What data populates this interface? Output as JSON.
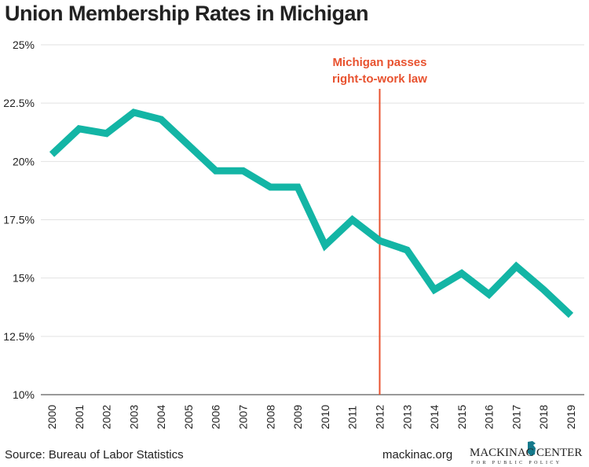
{
  "chart_data": {
    "type": "line",
    "title": "Union Membership Rates in Michigan",
    "x": [
      "2000",
      "2001",
      "2002",
      "2003",
      "2004",
      "2005",
      "2006",
      "2007",
      "2008",
      "2009",
      "2010",
      "2011",
      "2012",
      "2013",
      "2014",
      "2015",
      "2016",
      "2017",
      "2018",
      "2019"
    ],
    "series": [
      {
        "values": [
          20.3,
          21.4,
          21.2,
          22.1,
          21.8,
          20.7,
          19.6,
          19.6,
          18.9,
          18.9,
          16.4,
          17.5,
          16.6,
          16.2,
          14.5,
          15.2,
          14.3,
          15.5,
          14.5,
          13.4
        ]
      }
    ],
    "ylim": [
      10,
      25
    ],
    "yticks": [
      "10%",
      "12.5%",
      "15%",
      "17.5%",
      "20%",
      "22.5%",
      "25%"
    ],
    "ytick_values": [
      10,
      12.5,
      15,
      17.5,
      20,
      22.5,
      25
    ],
    "grid": true,
    "line_color": "#13b5a5",
    "annotation": {
      "x": "2012",
      "lines": [
        "Michigan passes",
        "right-to-work law"
      ],
      "color": "#e8522f"
    }
  },
  "footer": {
    "source": "Source: Bureau of Labor Statistics",
    "site": "mackinac.org"
  },
  "logo": {
    "name": "MACKINAC CENTER",
    "tagline": "FOR PUBLIC POLICY"
  }
}
